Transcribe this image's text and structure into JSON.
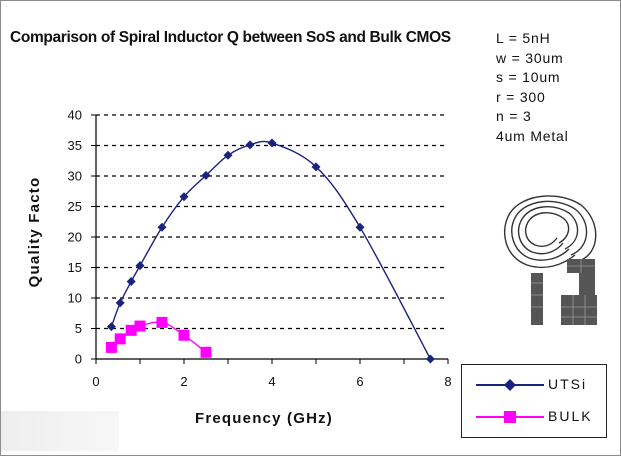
{
  "chart_data": {
    "type": "line",
    "title": "Comparison of Spiral Inductor Q between SoS and Bulk CMOS",
    "xlabel": "Frequency (GHz)",
    "ylabel": "Quality Facto",
    "xlim": [
      0,
      8
    ],
    "ylim": [
      0,
      40
    ],
    "xticks": [
      "0",
      "2",
      "4",
      "6",
      "8"
    ],
    "yticks": [
      "0",
      "5",
      "10",
      "15",
      "20",
      "25",
      "30",
      "35",
      "40"
    ],
    "grid": "horizontal dashed",
    "legend_position": "bottom-right",
    "series": [
      {
        "name": "UTSi",
        "color": "#1a237e",
        "marker": "diamond",
        "points": [
          [
            0.35,
            5.3
          ],
          [
            0.55,
            9.2
          ],
          [
            0.8,
            12.7
          ],
          [
            1.0,
            15.3
          ],
          [
            1.5,
            21.6
          ],
          [
            2.0,
            26.6
          ],
          [
            2.5,
            30.1
          ],
          [
            3.0,
            33.4
          ],
          [
            3.5,
            35.1
          ],
          [
            4.0,
            35.4
          ],
          [
            5.0,
            31.5
          ],
          [
            6.0,
            21.6
          ],
          [
            7.6,
            0.0
          ]
        ]
      },
      {
        "name": "BULK",
        "color": "#ff00ff",
        "marker": "square",
        "points": [
          [
            0.35,
            1.9
          ],
          [
            0.55,
            3.3
          ],
          [
            0.8,
            4.7
          ],
          [
            1.0,
            5.4
          ],
          [
            1.5,
            6.0
          ],
          [
            2.0,
            3.9
          ],
          [
            2.5,
            1.1
          ]
        ]
      }
    ]
  },
  "params": [
    "L = 5nH",
    "w = 30um",
    "s = 10um",
    "r = 300",
    "n = 3",
    "4um Metal"
  ],
  "icon": "spiral-inductor-icon"
}
